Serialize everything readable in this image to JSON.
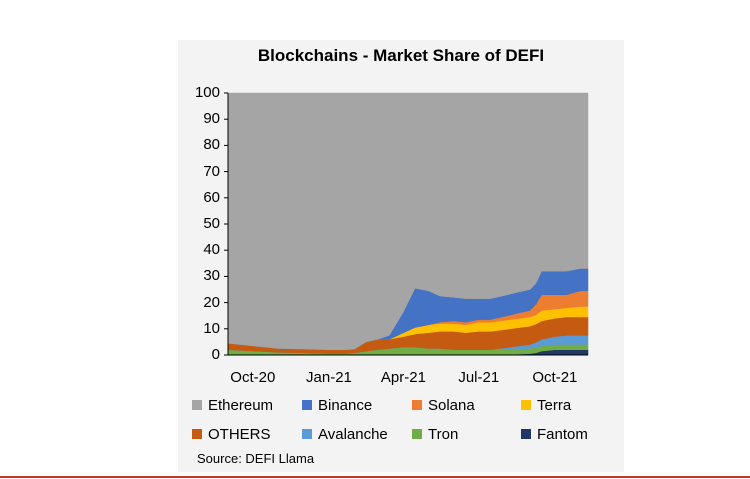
{
  "chart_data": {
    "type": "area",
    "stacked": true,
    "title": "Blockchains - Market Share of DEFI",
    "source": "Source: DEFI Llama",
    "ylim": [
      0,
      100
    ],
    "yticks": [
      "0",
      "10",
      "20",
      "30",
      "40",
      "50",
      "60",
      "70",
      "80",
      "90",
      "100"
    ],
    "xticks": [
      "Oct-20",
      "Jan-21",
      "Apr-21",
      "Jul-21",
      "Oct-21"
    ],
    "x": [
      "2020-09-01",
      "2020-10-01",
      "2020-11-01",
      "2020-12-01",
      "2021-01-01",
      "2021-01-20",
      "2021-02-01",
      "2021-02-15",
      "2021-03-01",
      "2021-03-15",
      "2021-04-01",
      "2021-04-15",
      "2021-05-01",
      "2021-05-15",
      "2021-06-01",
      "2021-06-15",
      "2021-07-01",
      "2021-07-15",
      "2021-08-01",
      "2021-08-15",
      "2021-09-01",
      "2021-09-08",
      "2021-09-15",
      "2021-10-01",
      "2021-10-15",
      "2021-11-01",
      "2021-11-10"
    ],
    "series": [
      {
        "name": "Fantom",
        "color": "#1f3864",
        "values": [
          0,
          0,
          0,
          0,
          0,
          0,
          0,
          0,
          0,
          0,
          0,
          0,
          0,
          0,
          0,
          0,
          0,
          0,
          0.2,
          0.3,
          0.5,
          0.8,
          1.5,
          2,
          2,
          2,
          2
        ]
      },
      {
        "name": "Tron",
        "color": "#70ad47",
        "values": [
          2,
          1.5,
          1,
          0.8,
          0.5,
          0.5,
          0.8,
          1.5,
          2,
          2.5,
          3,
          3,
          2.5,
          2.5,
          2,
          2,
          2,
          2,
          2,
          2,
          2,
          2,
          2,
          2,
          2,
          2,
          2
        ]
      },
      {
        "name": "Avalanche",
        "color": "#5b9bd5",
        "values": [
          0,
          0,
          0,
          0,
          0,
          0,
          0,
          0,
          0,
          0,
          0,
          0,
          0,
          0,
          0,
          0,
          0,
          0,
          0.5,
          1,
          1.5,
          2,
          2.5,
          3,
          3.5,
          3.5,
          3.5
        ]
      },
      {
        "name": "OTHERS",
        "color": "#c55a11",
        "values": [
          2.5,
          2,
          1.5,
          1.5,
          1.5,
          1.5,
          1.5,
          3.5,
          4,
          3.5,
          4,
          5,
          6,
          6.5,
          7,
          6.5,
          7,
          7,
          7,
          7,
          7,
          7,
          7,
          7,
          7,
          7,
          7
        ]
      },
      {
        "name": "Terra",
        "color": "#ffc000",
        "values": [
          0,
          0,
          0,
          0,
          0,
          0,
          0,
          0,
          0,
          0,
          1.5,
          2.5,
          3,
          3,
          3,
          3,
          3.5,
          3.5,
          3.5,
          3.5,
          3.5,
          3.5,
          4,
          3.5,
          3.5,
          4,
          4
        ]
      },
      {
        "name": "Solana",
        "color": "#ed7d31",
        "values": [
          0,
          0,
          0,
          0,
          0,
          0,
          0,
          0,
          0,
          0,
          0,
          0,
          0,
          0.5,
          1,
          1,
          1,
          1,
          1.5,
          2,
          2.5,
          4,
          6,
          5.5,
          5,
          6,
          6
        ]
      },
      {
        "name": "Binance",
        "color": "#4472c4",
        "values": [
          0,
          0,
          0,
          0,
          0,
          0,
          0,
          0,
          0,
          1.5,
          8,
          15,
          13,
          10,
          9,
          9,
          8,
          8,
          8,
          8,
          8,
          8,
          9,
          9,
          9,
          8.5,
          8.5
        ]
      },
      {
        "name": "Ethereum",
        "color": "#a5a5a5",
        "values": [
          95.5,
          96.5,
          97.5,
          97.7,
          98,
          98,
          97.7,
          95,
          94,
          92.5,
          83.5,
          74.5,
          75.5,
          77.5,
          78,
          78.5,
          78.5,
          78.5,
          77.3,
          76.2,
          75,
          72.7,
          68,
          68,
          68,
          67,
          67
        ]
      }
    ]
  },
  "legend_order": [
    "Ethereum",
    "Binance",
    "Solana",
    "Terra",
    "OTHERS",
    "Avalanche",
    "Tron",
    "Fantom"
  ]
}
